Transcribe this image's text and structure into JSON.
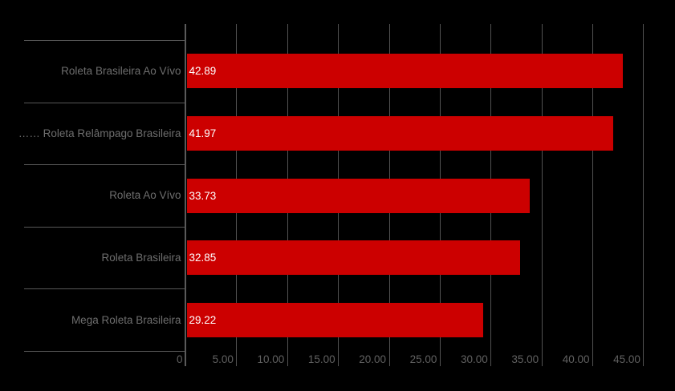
{
  "chart_data": {
    "type": "bar",
    "orientation": "horizontal",
    "title": "",
    "xlabel": "",
    "ylabel": "",
    "categories": [
      "Roleta Brasileira Ao Vívo",
      "…… Roleta Relâmpago Brasileira",
      "Roleta Ao Vívo",
      "Roleta Brasileira",
      "Mega Roleta Brasileira"
    ],
    "values": [
      42.89,
      41.97,
      33.73,
      32.85,
      29.22
    ],
    "value_labels": [
      "42.89",
      "41.97",
      "33.73",
      "32.85",
      "29.22"
    ],
    "x_tick_values": [
      0,
      5,
      10,
      15,
      20,
      25,
      30,
      35,
      40,
      45
    ],
    "x_tick_labels": [
      "0",
      "5.00",
      "10.00",
      "15.00",
      "20.00",
      "25.00",
      "30.00",
      "35.00",
      "40.00",
      "45.00"
    ],
    "xlim": [
      0,
      48
    ],
    "grid": "vertical-gridlines-on",
    "legend_position": "none",
    "colors": {
      "background": "#000000",
      "bar": "#cc0000",
      "gridline": "#525252",
      "separator": "#575757",
      "axis": "#5a5a5a",
      "category_label": "#6e6e6e",
      "tick_label": "#616161",
      "value_label": "#ffffff"
    }
  }
}
